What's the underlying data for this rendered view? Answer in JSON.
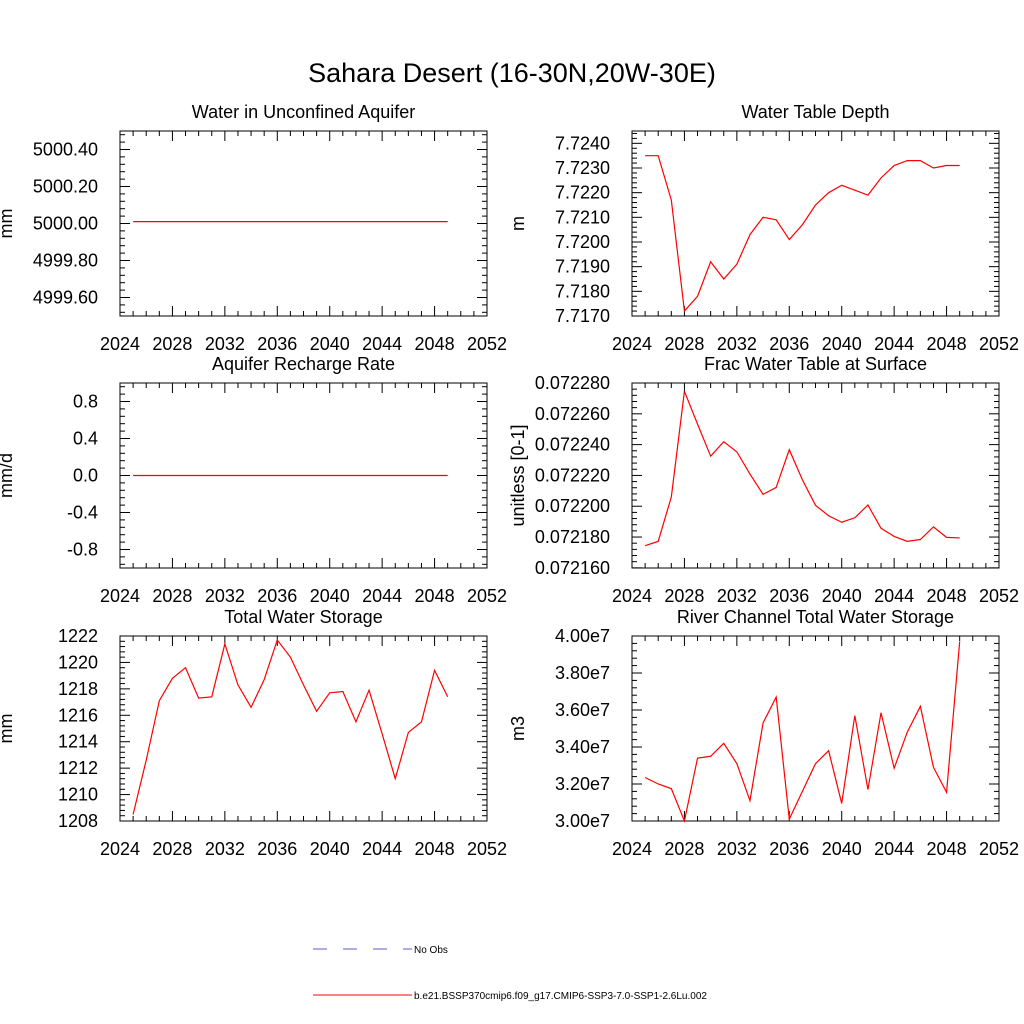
{
  "figure": {
    "title": "Sahara Desert (16-30N,20W-30E)"
  },
  "legend": {
    "entries": [
      {
        "label": "No Obs",
        "color": "#5b5bbf",
        "dash": true
      },
      {
        "label": "b.e21.BSSP370cmip6.f09_g17.CMIP6-SSP3-7.0-SSP1-2.6Lu.002",
        "color": "#ff0000",
        "dash": false
      }
    ]
  },
  "chart_data": [
    {
      "type": "line",
      "title": "Water in Unconfined Aquifer",
      "ylabel": "mm",
      "xlim": [
        2024,
        2052
      ],
      "xticks": [
        2024,
        2028,
        2032,
        2036,
        2040,
        2044,
        2048,
        2052
      ],
      "ylim": [
        4999.5,
        5000.5
      ],
      "yticks": [
        4999.6,
        4999.8,
        5000.0,
        5000.2,
        5000.4
      ],
      "ytick_labels": [
        "4999.60",
        "4999.80",
        "5000.00",
        "5000.20",
        "5000.40"
      ],
      "series": [
        {
          "color": "#ff0000",
          "x": [
            2025,
            2026,
            2027,
            2028,
            2029,
            2030,
            2031,
            2032,
            2033,
            2034,
            2035,
            2036,
            2037,
            2038,
            2039,
            2040,
            2041,
            2042,
            2043,
            2044,
            2045,
            2046,
            2047,
            2048,
            2049
          ],
          "y": [
            5000.01,
            5000.01,
            5000.01,
            5000.01,
            5000.01,
            5000.01,
            5000.01,
            5000.01,
            5000.01,
            5000.01,
            5000.01,
            5000.01,
            5000.01,
            5000.01,
            5000.01,
            5000.01,
            5000.01,
            5000.01,
            5000.01,
            5000.01,
            5000.01,
            5000.01,
            5000.01,
            5000.01,
            5000.01
          ]
        }
      ]
    },
    {
      "type": "line",
      "title": "Water Table Depth",
      "ylabel": "m",
      "xlim": [
        2024,
        2052
      ],
      "xticks": [
        2024,
        2028,
        2032,
        2036,
        2040,
        2044,
        2048,
        2052
      ],
      "ylim": [
        7.717,
        7.7245
      ],
      "yticks": [
        7.717,
        7.718,
        7.719,
        7.72,
        7.721,
        7.722,
        7.723,
        7.724
      ],
      "ytick_labels": [
        "7.7170",
        "7.7180",
        "7.7190",
        "7.7200",
        "7.7210",
        "7.7220",
        "7.7230",
        "7.7240"
      ],
      "series": [
        {
          "color": "#ff0000",
          "x": [
            2025,
            2026,
            2027,
            2028,
            2029,
            2030,
            2031,
            2032,
            2033,
            2034,
            2035,
            2036,
            2037,
            2038,
            2039,
            2040,
            2041,
            2042,
            2043,
            2044,
            2045,
            2046,
            2047,
            2048,
            2049
          ],
          "y": [
            7.7235,
            7.7235,
            7.7217,
            7.7172,
            7.7178,
            7.7192,
            7.7185,
            7.7191,
            7.7203,
            7.721,
            7.7209,
            7.7201,
            7.7207,
            7.7215,
            7.722,
            7.7223,
            7.7221,
            7.7219,
            7.7226,
            7.7231,
            7.7233,
            7.7233,
            7.723,
            7.7231,
            7.7231
          ]
        }
      ]
    },
    {
      "type": "line",
      "title": "Aquifer Recharge Rate",
      "ylabel": "mm/d",
      "xlim": [
        2024,
        2052
      ],
      "xticks": [
        2024,
        2028,
        2032,
        2036,
        2040,
        2044,
        2048,
        2052
      ],
      "ylim": [
        -1.0,
        1.0
      ],
      "yticks": [
        -0.8,
        -0.4,
        0.0,
        0.4,
        0.8
      ],
      "ytick_labels": [
        "-0.8",
        "-0.4",
        "0.0",
        "0.4",
        "0.8"
      ],
      "series": [
        {
          "color": "#ff0000",
          "x": [
            2025,
            2026,
            2027,
            2028,
            2029,
            2030,
            2031,
            2032,
            2033,
            2034,
            2035,
            2036,
            2037,
            2038,
            2039,
            2040,
            2041,
            2042,
            2043,
            2044,
            2045,
            2046,
            2047,
            2048,
            2049
          ],
          "y": [
            0,
            0,
            0,
            0,
            0,
            0,
            0,
            0,
            0,
            0,
            0,
            0,
            0,
            0,
            0,
            0,
            0,
            0,
            0,
            0,
            0,
            0,
            0,
            0,
            0
          ]
        }
      ]
    },
    {
      "type": "line",
      "title": "Frac Water Table at Surface",
      "ylabel": "unitless [0-1]",
      "xlim": [
        2024,
        2052
      ],
      "xticks": [
        2024,
        2028,
        2032,
        2036,
        2040,
        2044,
        2048,
        2052
      ],
      "ylim": [
        0.0721599,
        0.07228
      ],
      "yticks": [
        0.07216,
        0.07218,
        0.0722,
        0.07222,
        0.07224,
        0.07226,
        0.07228
      ],
      "ytick_labels": [
        "0.072160",
        "0.072180",
        "0.072200",
        "0.072220",
        "0.072240",
        "0.072260",
        "0.072280"
      ],
      "series": [
        {
          "color": "#ff0000",
          "x": [
            2025,
            2026,
            2027,
            2028,
            2029,
            2030,
            2031,
            2032,
            2033,
            2034,
            2035,
            2036,
            2037,
            2038,
            2039,
            2040,
            2041,
            2042,
            2043,
            2044,
            2045,
            2046,
            2047,
            2048,
            2049
          ],
          "y": [
            0.0721744,
            0.0721772,
            0.072206,
            0.0722746,
            0.0722533,
            0.0722325,
            0.0722419,
            0.0722353,
            0.0722209,
            0.0722077,
            0.0722122,
            0.0722367,
            0.0722172,
            0.0722006,
            0.0721938,
            0.0721896,
            0.0721925,
            0.0722008,
            0.0721857,
            0.0721804,
            0.0721772,
            0.0721784,
            0.0721866,
            0.0721798,
            0.0721794
          ]
        }
      ]
    },
    {
      "type": "line",
      "title": "Total Water Storage",
      "ylabel": "mm",
      "xlim": [
        2024,
        2052
      ],
      "xticks": [
        2024,
        2028,
        2032,
        2036,
        2040,
        2044,
        2048,
        2052
      ],
      "ylim": [
        1208,
        1222
      ],
      "yticks": [
        1208,
        1210,
        1212,
        1214,
        1216,
        1218,
        1220,
        1222
      ],
      "ytick_labels": [
        "1208",
        "1210",
        "1212",
        "1214",
        "1216",
        "1218",
        "1220",
        "1222"
      ],
      "series": [
        {
          "color": "#ff0000",
          "x": [
            2025,
            2026,
            2027,
            2028,
            2029,
            2030,
            2031,
            2032,
            2033,
            2034,
            2035,
            2036,
            2037,
            2038,
            2039,
            2040,
            2041,
            2042,
            2043,
            2044,
            2045,
            2046,
            2047,
            2048,
            2049
          ],
          "y": [
            1208.5,
            1212.6,
            1217.1,
            1218.8,
            1219.6,
            1217.3,
            1217.4,
            1221.4,
            1218.3,
            1216.6,
            1218.7,
            1221.7,
            1220.4,
            1218.3,
            1216.3,
            1217.7,
            1217.8,
            1215.5,
            1217.9,
            1214.6,
            1211.2,
            1214.7,
            1215.5,
            1219.4,
            1217.4
          ]
        }
      ]
    },
    {
      "type": "line",
      "title": "River Channel Total Water Storage",
      "ylabel": "m3",
      "xlim": [
        2024,
        2052
      ],
      "xticks": [
        2024,
        2028,
        2032,
        2036,
        2040,
        2044,
        2048,
        2052
      ],
      "ylim": [
        30000000,
        40000000
      ],
      "yticks": [
        30000000,
        32000000,
        34000000,
        36000000,
        38000000,
        40000000
      ],
      "ytick_labels": [
        "3.00e7",
        "3.20e7",
        "3.40e7",
        "3.60e7",
        "3.80e7",
        "4.00e7"
      ],
      "series": [
        {
          "color": "#ff0000",
          "x": [
            2025,
            2026,
            2027,
            2028,
            2029,
            2030,
            2031,
            2032,
            2033,
            2034,
            2035,
            2036,
            2037,
            2038,
            2039,
            2040,
            2041,
            2042,
            2043,
            2044,
            2045,
            2046,
            2047,
            2048,
            2049
          ],
          "y": [
            32350000,
            32000000,
            31750000,
            30000000,
            33400000,
            33500000,
            34200000,
            33100000,
            31100000,
            35300000,
            36700000,
            30100000,
            31600000,
            33100000,
            33800000,
            30950000,
            35700000,
            31700000,
            35850000,
            32850000,
            34800000,
            36200000,
            32900000,
            31550000,
            39700000
          ]
        }
      ]
    }
  ]
}
